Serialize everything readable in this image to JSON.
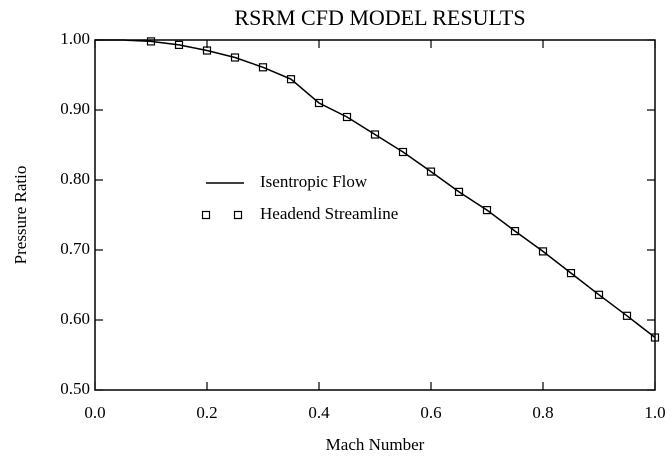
{
  "chart_data": {
    "type": "line",
    "title": "RSRM CFD MODEL RESULTS",
    "xlabel": "Mach Number",
    "ylabel": "Pressure Ratio",
    "xlim": [
      0,
      1
    ],
    "ylim": [
      0.5,
      1.0
    ],
    "xticks": [
      {
        "value": 0,
        "label": "0.0"
      },
      0.2,
      0.4,
      0.6,
      0.8,
      {
        "value": 1,
        "label": "1.0"
      }
    ],
    "yticks": [
      {
        "value": 0.5,
        "label": "0.50"
      },
      {
        "value": 0.6,
        "label": "0.60"
      },
      {
        "value": 0.7,
        "label": "0.70"
      },
      {
        "value": 0.8,
        "label": "0.80"
      },
      {
        "value": 0.9,
        "label": "0.90"
      },
      {
        "value": 1.0,
        "label": "1.00"
      }
    ],
    "legend": "center-left",
    "series": [
      {
        "name": "Isentropic Flow",
        "mode": "line",
        "color": "#000000",
        "x": [
          0,
          0.05,
          0.1,
          0.15,
          0.2,
          0.25,
          0.3,
          0.35,
          0.4,
          0.45,
          0.5,
          0.55,
          0.6,
          0.65,
          0.7,
          0.75,
          0.8,
          0.85,
          0.9,
          0.95,
          1.0
        ],
        "values": [
          1.0,
          1.0,
          0.998,
          0.993,
          0.985,
          0.975,
          0.961,
          0.944,
          0.91,
          0.89,
          0.865,
          0.84,
          0.812,
          0.783,
          0.757,
          0.727,
          0.698,
          0.667,
          0.636,
          0.606,
          0.575
        ]
      },
      {
        "name": "Headend Streamline",
        "mode": "markers",
        "color": "#000000",
        "x": [
          0.1,
          0.15,
          0.2,
          0.25,
          0.3,
          0.35,
          0.4,
          0.45,
          0.5,
          0.55,
          0.6,
          0.65,
          0.7,
          0.75,
          0.8,
          0.85,
          0.9,
          0.95,
          1.0
        ],
        "values": [
          0.998,
          0.993,
          0.985,
          0.975,
          0.961,
          0.944,
          0.91,
          0.89,
          0.865,
          0.84,
          0.812,
          0.783,
          0.757,
          0.727,
          0.698,
          0.667,
          0.636,
          0.606,
          0.575
        ]
      }
    ]
  }
}
